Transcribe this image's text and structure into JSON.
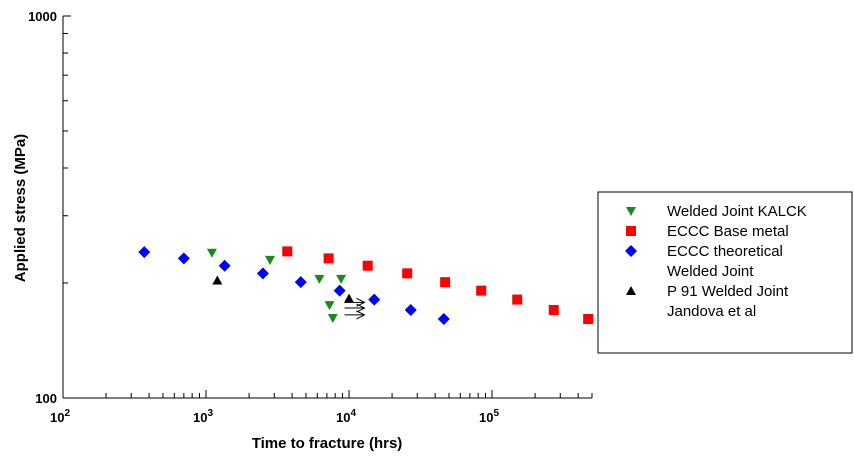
{
  "chart_data": {
    "type": "scatter",
    "title": "",
    "xlabel": "Time to fracture (hrs)",
    "ylabel": "Applied stress (MPa)",
    "x_scale": "log",
    "y_scale": "log",
    "xlim": [
      100,
      500000
    ],
    "ylim": [
      100,
      1000
    ],
    "x_ticks": [
      {
        "value": 100,
        "base": "10",
        "exp": "2"
      },
      {
        "value": 1000,
        "base": "10",
        "exp": "3"
      },
      {
        "value": 10000,
        "base": "10",
        "exp": "4"
      },
      {
        "value": 100000,
        "base": "10",
        "exp": "5"
      }
    ],
    "y_ticks": [
      {
        "value": 100,
        "label": "100"
      },
      {
        "value": 1000,
        "label": "1000"
      }
    ],
    "grid": false,
    "legend_position": "right",
    "series": [
      {
        "name": "Welded Joint KALCK",
        "marker": "triangle-down",
        "color": "#1a8a1a",
        "points": [
          {
            "x": 1100,
            "y": 240
          },
          {
            "x": 2800,
            "y": 230
          },
          {
            "x": 6200,
            "y": 205
          },
          {
            "x": 8800,
            "y": 205
          },
          {
            "x": 7300,
            "y": 175
          },
          {
            "x": 7700,
            "y": 162
          }
        ]
      },
      {
        "name": "ECCC Base metal",
        "marker": "square",
        "color": "#ff0000",
        "points": [
          {
            "x": 3700,
            "y": 242
          },
          {
            "x": 7200,
            "y": 232
          },
          {
            "x": 13500,
            "y": 222
          },
          {
            "x": 25500,
            "y": 212
          },
          {
            "x": 47000,
            "y": 201
          },
          {
            "x": 84000,
            "y": 191
          },
          {
            "x": 150000,
            "y": 181
          },
          {
            "x": 270000,
            "y": 170
          },
          {
            "x": 470000,
            "y": 161
          }
        ]
      },
      {
        "name": "ECCC theoretical Welded Joint",
        "legend_lines": [
          "ECCC theoretical",
          "Welded Joint"
        ],
        "marker": "diamond",
        "color": "#0000ff",
        "points": [
          {
            "x": 370,
            "y": 241
          },
          {
            "x": 700,
            "y": 232
          },
          {
            "x": 1350,
            "y": 222
          },
          {
            "x": 2500,
            "y": 212
          },
          {
            "x": 4600,
            "y": 201
          },
          {
            "x": 8600,
            "y": 191
          },
          {
            "x": 15000,
            "y": 181
          },
          {
            "x": 27000,
            "y": 170
          },
          {
            "x": 46000,
            "y": 161
          }
        ]
      },
      {
        "name": "P 91 Welded Joint Jandova et al",
        "legend_lines": [
          "P 91 Welded Joint",
          "Jandova et al"
        ],
        "marker": "triangle-up",
        "color": "#000000",
        "points": [
          {
            "x": 1200,
            "y": 203
          },
          {
            "x": 10000,
            "y": 182
          }
        ]
      }
    ],
    "annotations": [
      {
        "type": "runout-arrows",
        "x": 9300,
        "y_values": [
          178,
          172,
          165
        ],
        "color": "#000000"
      }
    ]
  }
}
